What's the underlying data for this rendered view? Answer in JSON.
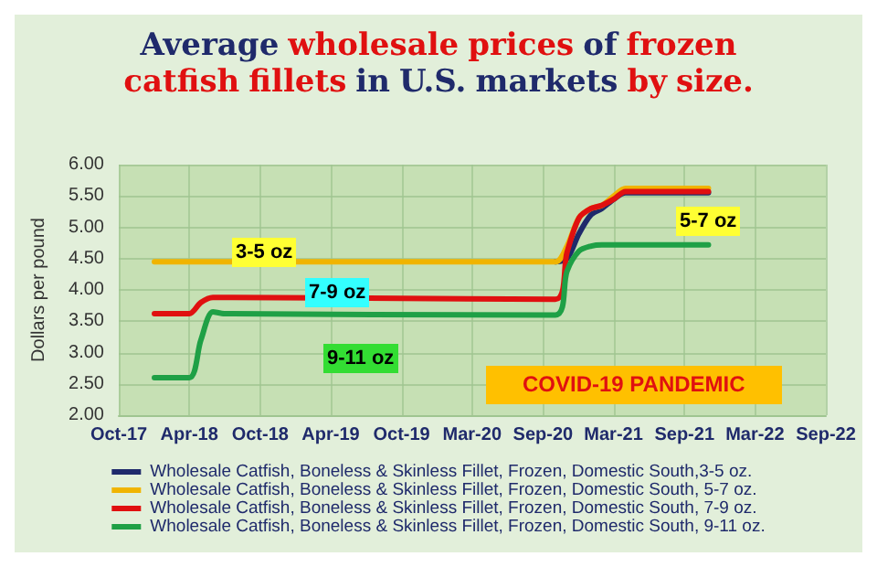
{
  "chart_data": {
    "type": "line",
    "title": "Average wholesale prices of frozen catfish fillets in U.S. markets by size.",
    "ylabel": "Dollars per pound",
    "x": [
      "2018-01",
      "2018-04",
      "2018-05",
      "2018-06",
      "2018-07",
      "2020-11",
      "2020-12",
      "2021-01",
      "2021-02",
      "2021-03",
      "2021-04",
      "2021-05",
      "2021-12"
    ],
    "series": [
      {
        "name": "Wholesale Catfish, Boneless & Skinless Fillet, Frozen, Domestic South,3-5 oz.",
        "color": "#1f2a6b",
        "values": [
          null,
          null,
          null,
          null,
          null,
          4.45,
          4.5,
          4.9,
          5.2,
          5.3,
          5.45,
          5.55,
          5.55
        ]
      },
      {
        "name": "Wholesale Catfish, Boneless & Skinless Fillet, Frozen, Domestic South, 5-7 oz.",
        "color": "#f0b400",
        "values": [
          4.45,
          4.45,
          4.45,
          4.45,
          4.45,
          4.45,
          4.7,
          5.15,
          5.3,
          5.35,
          5.5,
          5.62,
          5.62
        ]
      },
      {
        "name": "Wholesale Catfish, Boneless & Skinless Fillet, Frozen, Domestic South, 7-9 oz.",
        "color": "#e01010",
        "values": [
          3.62,
          3.62,
          3.8,
          3.88,
          3.88,
          3.85,
          4.6,
          5.15,
          5.3,
          5.35,
          5.45,
          5.57,
          5.57
        ]
      },
      {
        "name": "Wholesale Catfish, Boneless & Skinless Fillet, Frozen, Domestic South, 9-11 oz.",
        "color": "#1fa046",
        "values": [
          2.6,
          2.6,
          3.2,
          3.65,
          3.62,
          3.6,
          4.3,
          4.62,
          4.7,
          4.72,
          4.72,
          4.72,
          4.72
        ]
      }
    ],
    "xlim": [
      "2017-10-01",
      "2022-09-30"
    ],
    "xticks": [
      {
        "value": "2017-10-01",
        "label": "Oct-17"
      },
      {
        "value": "2018-04-01",
        "label": "Apr-18"
      },
      {
        "value": "2018-10-01",
        "label": "Oct-18"
      },
      {
        "value": "2019-04-01",
        "label": "Apr-19"
      },
      {
        "value": "2019-10-01",
        "label": "Oct-19"
      },
      {
        "value": "2020-03-31",
        "label": "Mar-20"
      },
      {
        "value": "2020-09-30",
        "label": "Sep-20"
      },
      {
        "value": "2021-03-31",
        "label": "Mar-21"
      },
      {
        "value": "2021-09-30",
        "label": "Sep-21"
      },
      {
        "value": "2022-03-31",
        "label": "Mar-22"
      },
      {
        "value": "2022-09-30",
        "label": "Sep-22"
      }
    ],
    "ylim": [
      2,
      6
    ],
    "yticks": [
      {
        "value": 2,
        "label": "2.00"
      },
      {
        "value": 2.5,
        "label": "2.50"
      },
      {
        "value": 3,
        "label": "3.00"
      },
      {
        "value": 3.5,
        "label": "3.50"
      },
      {
        "value": 4,
        "label": "4.00"
      },
      {
        "value": 4.5,
        "label": "4.50"
      },
      {
        "value": 5,
        "label": "5.00"
      },
      {
        "value": 5.5,
        "label": "5.50"
      },
      {
        "value": 6,
        "label": "6.00"
      }
    ],
    "annotations": [
      "3-5 oz",
      "7-9 oz",
      "9-11 oz",
      "5-7 oz",
      "COVID-19 PANDEMIC"
    ],
    "grid": true,
    "legend": "bottom",
    "marker": "none",
    "line_style": "solid"
  }
}
